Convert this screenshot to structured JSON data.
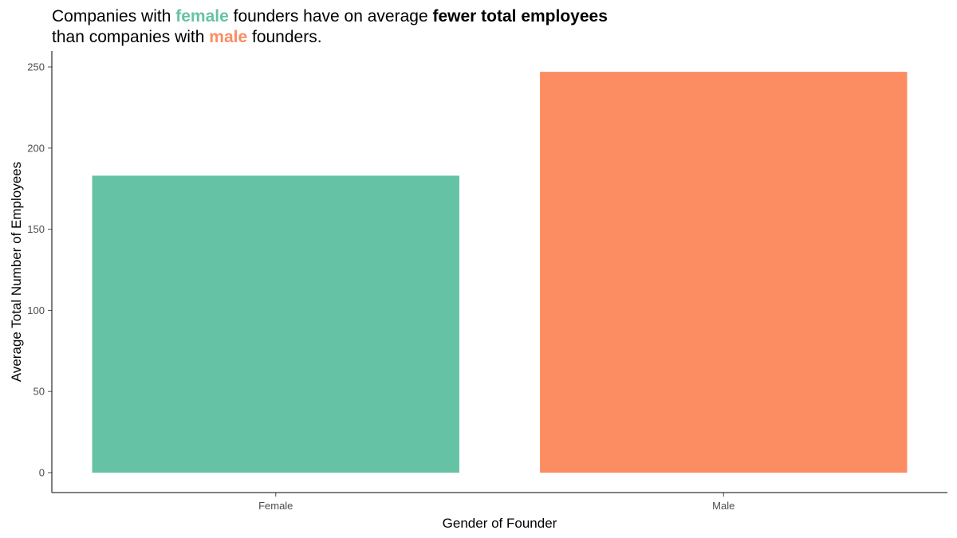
{
  "title": {
    "line1": {
      "part1": "Companies with ",
      "female_word": "female",
      "part2": " founders have on average ",
      "bold_phrase": "fewer total employees"
    },
    "line2": {
      "part1": "than companies with ",
      "male_word": "male",
      "part2": " founders."
    }
  },
  "colors": {
    "female": "#66c2a5",
    "male": "#fc8d62",
    "axis": "#000000",
    "tick_text": "#4d4d4d"
  },
  "chart_data": {
    "type": "bar",
    "categories": [
      "Female",
      "Male"
    ],
    "values": [
      183,
      247
    ],
    "xlabel": "Gender of Founder",
    "ylabel": "Average Total Number of Employees",
    "ylim": [
      0,
      250
    ],
    "yticks": [
      0,
      50,
      100,
      150,
      200,
      250
    ],
    "grid": false,
    "legend": "none"
  }
}
